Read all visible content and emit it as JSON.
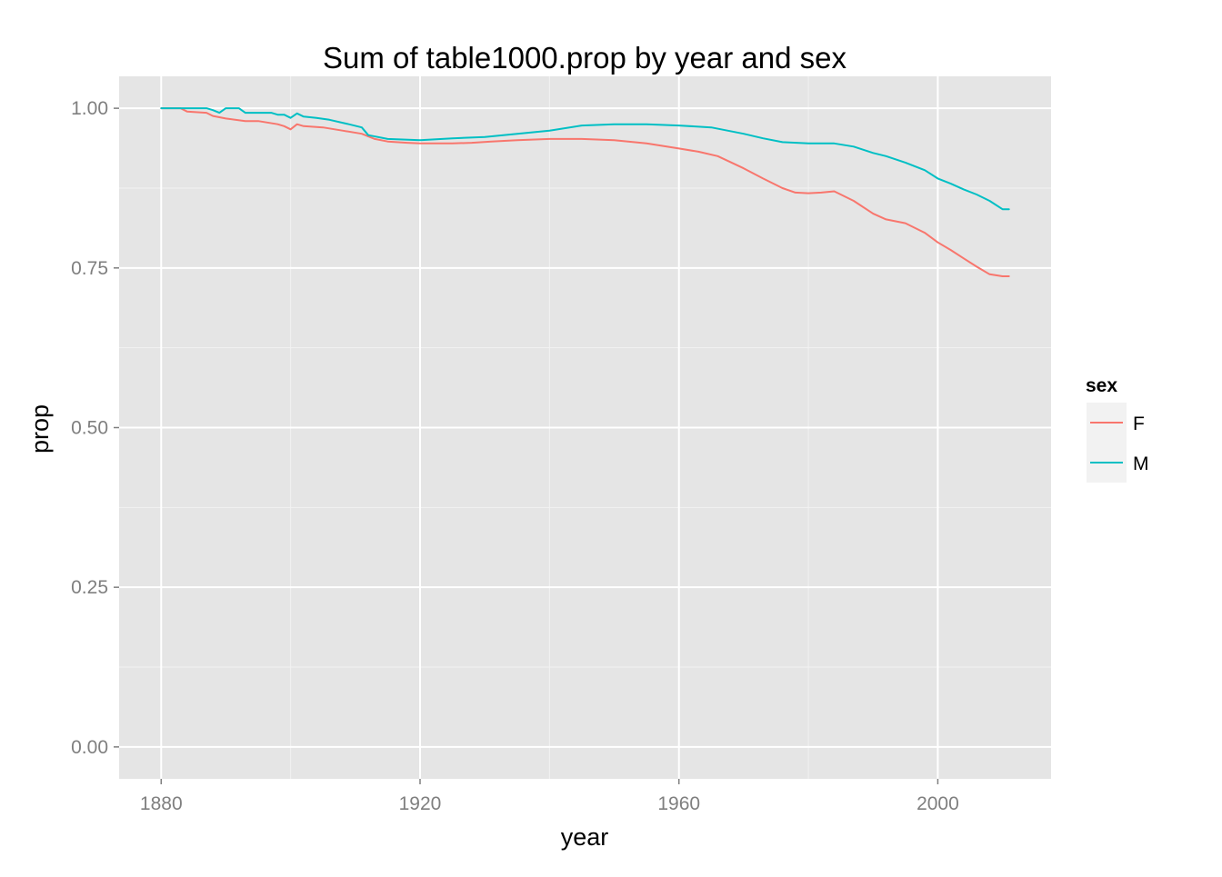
{
  "chart_data": {
    "type": "line",
    "title": "Sum of table1000.prop by year and sex",
    "xlabel": "year",
    "ylabel": "prop",
    "xlim": [
      1873.5,
      2017.5
    ],
    "ylim": [
      -0.05,
      1.05
    ],
    "x_ticks": [
      1880,
      1920,
      1960,
      2000
    ],
    "x_tick_labels": [
      "1880",
      "1920",
      "1960",
      "2000"
    ],
    "y_ticks": [
      0.0,
      0.25,
      0.5,
      0.75,
      1.0
    ],
    "y_tick_labels": [
      "0.00",
      "0.25",
      "0.50",
      "0.75",
      "1.00"
    ],
    "grid": true,
    "legend": {
      "title": "sex",
      "position": "right"
    },
    "series": [
      {
        "name": "F",
        "color": "#f8766d",
        "x": [
          1880,
          1883,
          1884,
          1887,
          1888,
          1890,
          1893,
          1895,
          1898,
          1899,
          1900,
          1901,
          1902,
          1905,
          1908,
          1911,
          1913,
          1915,
          1918,
          1920,
          1925,
          1928,
          1931,
          1935,
          1940,
          1945,
          1950,
          1955,
          1960,
          1963,
          1966,
          1970,
          1973,
          1976,
          1978,
          1980,
          1982,
          1984,
          1987,
          1990,
          1992,
          1995,
          1998,
          2000,
          2002,
          2004,
          2006,
          2008,
          2010,
          2011
        ],
        "y": [
          1.0,
          1.0,
          0.995,
          0.993,
          0.988,
          0.984,
          0.98,
          0.98,
          0.975,
          0.972,
          0.967,
          0.975,
          0.972,
          0.97,
          0.965,
          0.96,
          0.952,
          0.948,
          0.946,
          0.945,
          0.945,
          0.946,
          0.948,
          0.95,
          0.952,
          0.952,
          0.95,
          0.945,
          0.937,
          0.932,
          0.925,
          0.906,
          0.89,
          0.875,
          0.868,
          0.867,
          0.868,
          0.87,
          0.855,
          0.835,
          0.826,
          0.82,
          0.805,
          0.79,
          0.778,
          0.765,
          0.752,
          0.74,
          0.737,
          0.737
        ]
      },
      {
        "name": "M",
        "color": "#00bfc4",
        "x": [
          1880,
          1883,
          1887,
          1888,
          1889,
          1890,
          1892,
          1893,
          1895,
          1897,
          1898,
          1899,
          1900,
          1901,
          1902,
          1904,
          1906,
          1909,
          1911,
          1912,
          1915,
          1920,
          1925,
          1930,
          1935,
          1940,
          1945,
          1950,
          1955,
          1960,
          1965,
          1970,
          1973,
          1976,
          1980,
          1984,
          1987,
          1990,
          1992,
          1995,
          1998,
          2000,
          2002,
          2004,
          2006,
          2008,
          2010,
          2011
        ],
        "y": [
          1.0,
          1.0,
          1.0,
          0.997,
          0.993,
          1.0,
          1.0,
          0.993,
          0.993,
          0.993,
          0.99,
          0.99,
          0.985,
          0.992,
          0.987,
          0.985,
          0.982,
          0.975,
          0.97,
          0.958,
          0.952,
          0.95,
          0.953,
          0.955,
          0.96,
          0.965,
          0.973,
          0.975,
          0.975,
          0.973,
          0.97,
          0.96,
          0.953,
          0.947,
          0.945,
          0.945,
          0.94,
          0.93,
          0.925,
          0.915,
          0.903,
          0.89,
          0.882,
          0.873,
          0.865,
          0.855,
          0.842,
          0.842
        ]
      }
    ]
  }
}
